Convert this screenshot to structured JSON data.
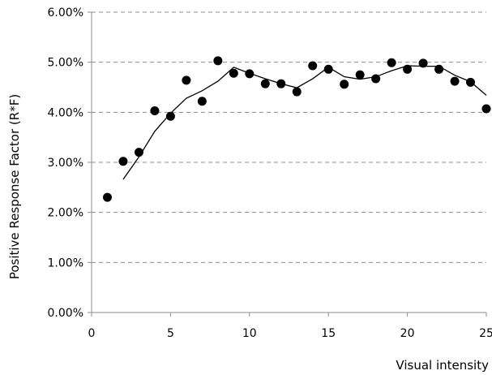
{
  "chart_data": {
    "type": "scatter",
    "title": "",
    "xlabel": "Visual intensity",
    "ylabel": "Positive Response Factor (R*F)",
    "xlim": [
      0,
      25
    ],
    "ylim": [
      0,
      6
    ],
    "x_ticks": [
      0,
      5,
      10,
      15,
      20,
      25
    ],
    "y_ticks": [
      0,
      1,
      2,
      3,
      4,
      5,
      6
    ],
    "y_tick_labels": [
      "0.00%",
      "1.00%",
      "2.00%",
      "3.00%",
      "4.00%",
      "5.00%",
      "6.00%"
    ],
    "grid": "horizontal dashed",
    "legend": "none",
    "series": [
      {
        "kind": "points",
        "marker": "circle",
        "color": "#000000",
        "x": [
          1,
          2,
          3,
          4,
          5,
          6,
          7,
          8,
          9,
          10,
          11,
          12,
          13,
          14,
          15,
          16,
          17,
          18,
          19,
          20,
          21,
          22,
          23,
          24,
          25
        ],
        "y": [
          2.3,
          3.02,
          3.2,
          4.03,
          3.92,
          4.64,
          4.22,
          5.03,
          4.78,
          4.77,
          4.57,
          4.57,
          4.41,
          4.93,
          4.86,
          4.56,
          4.75,
          4.67,
          4.99,
          4.86,
          4.98,
          4.86,
          4.62,
          4.6,
          4.07
        ]
      },
      {
        "kind": "trendline",
        "color": "#000000",
        "x": [
          2,
          3,
          4,
          5,
          6,
          7,
          8,
          9,
          10,
          11,
          12,
          13,
          14,
          15,
          16,
          17,
          18,
          19,
          20,
          21,
          22,
          23,
          24,
          25
        ],
        "y": [
          2.66,
          3.11,
          3.62,
          3.98,
          4.28,
          4.43,
          4.62,
          4.9,
          4.78,
          4.67,
          4.57,
          4.49,
          4.67,
          4.9,
          4.71,
          4.66,
          4.71,
          4.83,
          4.93,
          4.92,
          4.92,
          4.74,
          4.61,
          4.34
        ]
      }
    ]
  }
}
